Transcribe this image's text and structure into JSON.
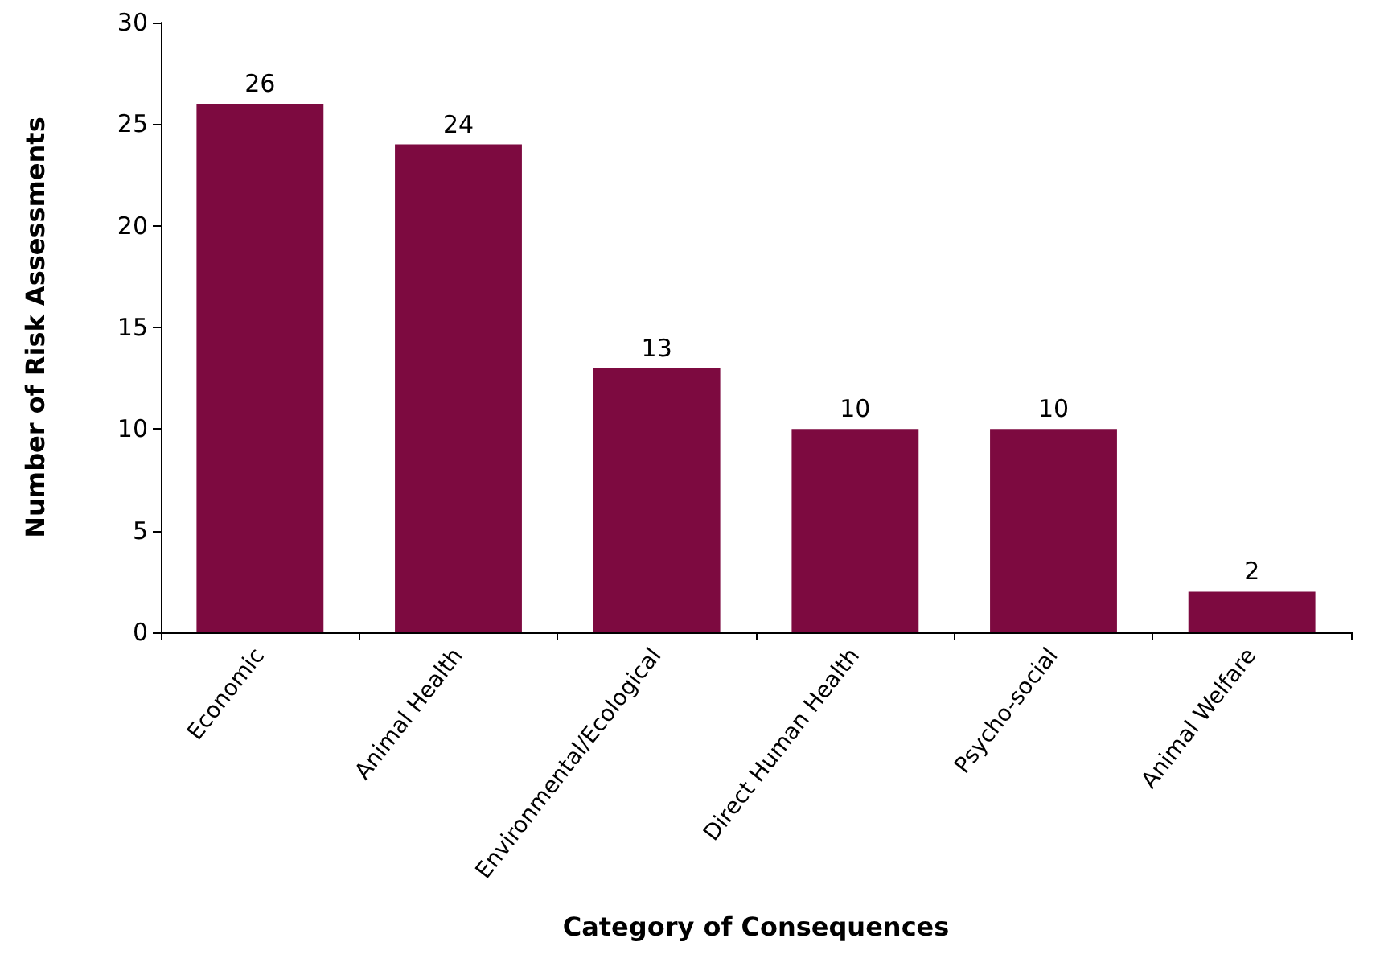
{
  "chart_data": {
    "type": "bar",
    "xlabel": "Category of Consequences",
    "ylabel": "Number of Risk Assessments",
    "categories": [
      "Economic",
      "Animal Health",
      "Environmental/Ecological",
      "Direct Human Health",
      "Psycho-social",
      "Animal Welfare"
    ],
    "values": [
      26,
      24,
      13,
      10,
      10,
      2
    ],
    "color": "#7d0a40",
    "ylim": [
      0,
      30
    ],
    "yticks": [
      0,
      5,
      10,
      15,
      20,
      25,
      30
    ],
    "grid": false,
    "data_labels": true
  }
}
